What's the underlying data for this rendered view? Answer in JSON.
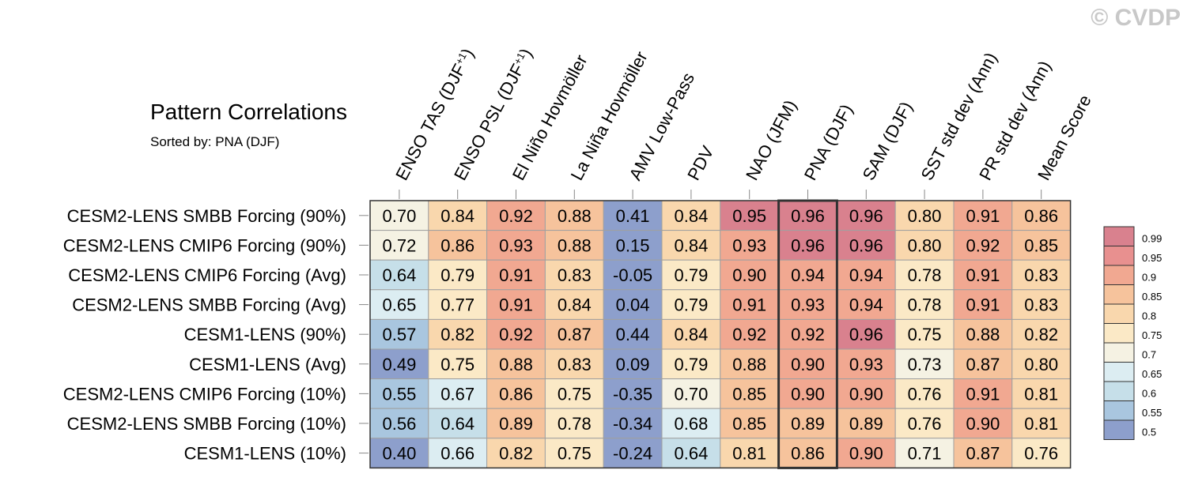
{
  "watermark": "© CVDP",
  "title": "Pattern Correlations",
  "subtitle": "Sorted by: PNA (DJF)",
  "chart_data": {
    "type": "heatmap",
    "columns": [
      "ENSO TAS (DJF+1)",
      "ENSO PSL (DJF+1)",
      "El Niño Hovmöller",
      "La Niña Hovmöller",
      "AMV Low-Pass",
      "PDV",
      "NAO (JFM)",
      "PNA (DJF)",
      "SAM (DJF)",
      "SST std dev (Ann)",
      "PR std dev (Ann)",
      "Mean Score"
    ],
    "rows": [
      "CESM2-LENS SMBB Forcing (90%)",
      "CESM2-LENS CMIP6 Forcing (90%)",
      "CESM2-LENS CMIP6 Forcing (Avg)",
      "CESM2-LENS SMBB Forcing (Avg)",
      "CESM1-LENS (90%)",
      "CESM1-LENS (Avg)",
      "CESM2-LENS CMIP6 Forcing (10%)",
      "CESM2-LENS SMBB Forcing (10%)",
      "CESM1-LENS (10%)"
    ],
    "values": [
      [
        "0.70",
        "0.84",
        "0.92",
        "0.88",
        "0.41",
        "0.84",
        "0.95",
        "0.96",
        "0.96",
        "0.80",
        "0.91",
        "0.86"
      ],
      [
        "0.72",
        "0.86",
        "0.93",
        "0.88",
        "0.15",
        "0.84",
        "0.93",
        "0.96",
        "0.96",
        "0.80",
        "0.92",
        "0.85"
      ],
      [
        "0.64",
        "0.79",
        "0.91",
        "0.83",
        "-0.05",
        "0.79",
        "0.90",
        "0.94",
        "0.94",
        "0.78",
        "0.91",
        "0.83"
      ],
      [
        "0.65",
        "0.77",
        "0.91",
        "0.84",
        "0.04",
        "0.79",
        "0.91",
        "0.93",
        "0.94",
        "0.78",
        "0.91",
        "0.83"
      ],
      [
        "0.57",
        "0.82",
        "0.92",
        "0.87",
        "0.44",
        "0.84",
        "0.92",
        "0.92",
        "0.96",
        "0.75",
        "0.88",
        "0.82"
      ],
      [
        "0.49",
        "0.75",
        "0.88",
        "0.83",
        "0.09",
        "0.79",
        "0.88",
        "0.90",
        "0.93",
        "0.73",
        "0.87",
        "0.80"
      ],
      [
        "0.55",
        "0.67",
        "0.86",
        "0.75",
        "-0.35",
        "0.70",
        "0.85",
        "0.90",
        "0.90",
        "0.76",
        "0.91",
        "0.81"
      ],
      [
        "0.56",
        "0.64",
        "0.89",
        "0.78",
        "-0.34",
        "0.68",
        "0.85",
        "0.89",
        "0.89",
        "0.76",
        "0.90",
        "0.81"
      ],
      [
        "0.40",
        "0.66",
        "0.82",
        "0.75",
        "-0.24",
        "0.64",
        "0.81",
        "0.86",
        "0.90",
        "0.71",
        "0.87",
        "0.76"
      ]
    ],
    "highlight_column": "PNA (DJF)",
    "colorbar": {
      "labels": [
        "0.99",
        "0.95",
        "0.9",
        "0.85",
        "0.8",
        "0.75",
        "0.7",
        "0.65",
        "0.6",
        "0.55",
        "0.5"
      ],
      "colors": [
        "#d9818e",
        "#e8908f",
        "#f1a891",
        "#f6c39c",
        "#f9d7ad",
        "#fbe9c6",
        "#f5f2e3",
        "#dcedf2",
        "#c6dfe9",
        "#a9c6df",
        "#8d9fcc"
      ]
    }
  }
}
